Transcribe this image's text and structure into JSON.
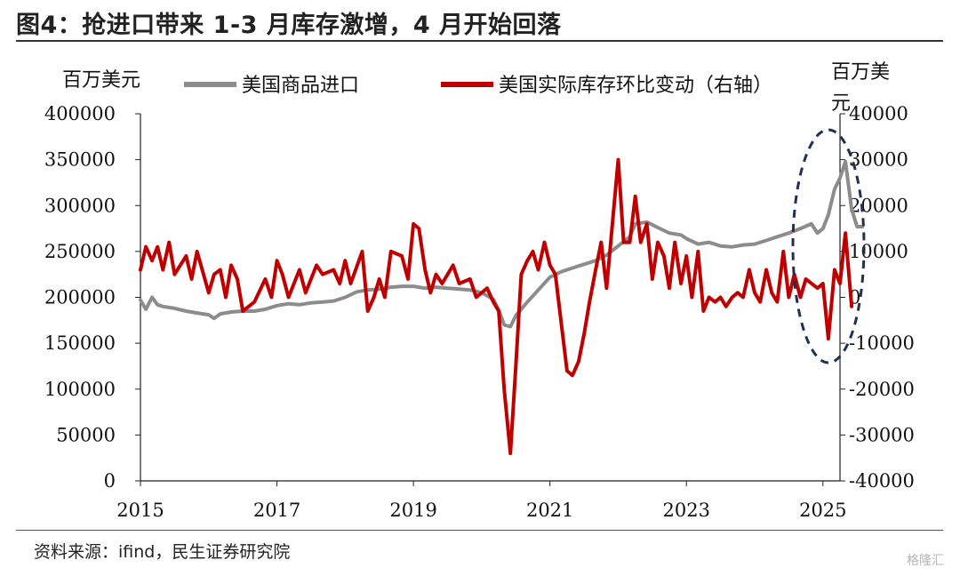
{
  "title": "图4：抢进口带来 1-3 月库存激增，4 月开始回落",
  "source": "资料来源：ifind，民生证券研究院",
  "watermark": "格隆汇",
  "chart_data": {
    "type": "line",
    "left_unit": "百万美元",
    "right_unit": "百万美元",
    "left_axis": {
      "min": 0,
      "max": 400000,
      "step": 50000,
      "ticks": [
        "0",
        "50000",
        "100000",
        "150000",
        "200000",
        "250000",
        "300000",
        "350000",
        "400000"
      ]
    },
    "right_axis": {
      "min": -40000,
      "max": 40000,
      "step": 10000,
      "ticks": [
        "-40000",
        "-30000",
        "-20000",
        "-10000",
        "0",
        "10000",
        "20000",
        "30000",
        "40000"
      ]
    },
    "x_axis": {
      "min": 2015.0,
      "max": 2025.25,
      "ticks": [
        "2015",
        "2017",
        "2019",
        "2021",
        "2023",
        "2025"
      ]
    },
    "series": [
      {
        "name": "美国商品进口",
        "axis": "left",
        "color": "#8c8c8c",
        "points": [
          [
            2015.0,
            197000
          ],
          [
            2015.08,
            187000
          ],
          [
            2015.17,
            200000
          ],
          [
            2015.25,
            192000
          ],
          [
            2015.33,
            190000
          ],
          [
            2015.5,
            188000
          ],
          [
            2015.67,
            185000
          ],
          [
            2015.83,
            183000
          ],
          [
            2016.0,
            181000
          ],
          [
            2016.08,
            177000
          ],
          [
            2016.17,
            182000
          ],
          [
            2016.33,
            184000
          ],
          [
            2016.5,
            185000
          ],
          [
            2016.67,
            185000
          ],
          [
            2016.83,
            187000
          ],
          [
            2017.0,
            191000
          ],
          [
            2017.17,
            193000
          ],
          [
            2017.33,
            192000
          ],
          [
            2017.5,
            194000
          ],
          [
            2017.67,
            195000
          ],
          [
            2017.83,
            196000
          ],
          [
            2018.0,
            200000
          ],
          [
            2018.17,
            206000
          ],
          [
            2018.33,
            208000
          ],
          [
            2018.5,
            209000
          ],
          [
            2018.67,
            211000
          ],
          [
            2018.83,
            212000
          ],
          [
            2019.0,
            212000
          ],
          [
            2019.17,
            210000
          ],
          [
            2019.33,
            211000
          ],
          [
            2019.5,
            210000
          ],
          [
            2019.67,
            209000
          ],
          [
            2019.83,
            208000
          ],
          [
            2020.0,
            205000
          ],
          [
            2020.17,
            198000
          ],
          [
            2020.25,
            186000
          ],
          [
            2020.33,
            170000
          ],
          [
            2020.42,
            168000
          ],
          [
            2020.5,
            180000
          ],
          [
            2020.67,
            195000
          ],
          [
            2020.83,
            208000
          ],
          [
            2021.0,
            222000
          ],
          [
            2021.17,
            228000
          ],
          [
            2021.33,
            232000
          ],
          [
            2021.5,
            236000
          ],
          [
            2021.67,
            240000
          ],
          [
            2021.83,
            246000
          ],
          [
            2022.0,
            256000
          ],
          [
            2022.17,
            266000
          ],
          [
            2022.25,
            280000
          ],
          [
            2022.42,
            282000
          ],
          [
            2022.58,
            276000
          ],
          [
            2022.75,
            270000
          ],
          [
            2022.92,
            268000
          ],
          [
            2023.0,
            264000
          ],
          [
            2023.17,
            258000
          ],
          [
            2023.33,
            260000
          ],
          [
            2023.5,
            256000
          ],
          [
            2023.67,
            255000
          ],
          [
            2023.83,
            257000
          ],
          [
            2024.0,
            258000
          ],
          [
            2024.17,
            262000
          ],
          [
            2024.33,
            266000
          ],
          [
            2024.5,
            270000
          ],
          [
            2024.67,
            275000
          ],
          [
            2024.83,
            280000
          ],
          [
            2024.92,
            270000
          ],
          [
            2025.0,
            275000
          ],
          [
            2025.08,
            290000
          ],
          [
            2025.17,
            318000
          ],
          [
            2025.25,
            330000
          ],
          [
            2025.33,
            348000
          ],
          [
            2025.42,
            296000
          ],
          [
            2025.5,
            277000
          ],
          [
            2025.58,
            277000
          ]
        ]
      },
      {
        "name": "美国实际库存环比变动（右轴）",
        "axis": "right",
        "color": "#c00000",
        "points": [
          [
            2015.0,
            6000
          ],
          [
            2015.08,
            11000
          ],
          [
            2015.17,
            8000
          ],
          [
            2015.25,
            11000
          ],
          [
            2015.33,
            6000
          ],
          [
            2015.42,
            12000
          ],
          [
            2015.5,
            5000
          ],
          [
            2015.67,
            9000
          ],
          [
            2015.75,
            4000
          ],
          [
            2015.83,
            10000
          ],
          [
            2016.0,
            1000
          ],
          [
            2016.08,
            5000
          ],
          [
            2016.17,
            6000
          ],
          [
            2016.25,
            0
          ],
          [
            2016.33,
            7000
          ],
          [
            2016.42,
            4000
          ],
          [
            2016.5,
            -3000
          ],
          [
            2016.67,
            -1000
          ],
          [
            2016.83,
            4000
          ],
          [
            2016.92,
            0
          ],
          [
            2017.0,
            8000
          ],
          [
            2017.08,
            5000
          ],
          [
            2017.17,
            0
          ],
          [
            2017.33,
            6000
          ],
          [
            2017.42,
            1000
          ],
          [
            2017.58,
            7000
          ],
          [
            2017.67,
            5000
          ],
          [
            2017.83,
            6000
          ],
          [
            2017.92,
            3000
          ],
          [
            2018.0,
            8000
          ],
          [
            2018.08,
            3000
          ],
          [
            2018.25,
            10000
          ],
          [
            2018.33,
            -3000
          ],
          [
            2018.42,
            0
          ],
          [
            2018.5,
            4000
          ],
          [
            2018.58,
            0
          ],
          [
            2018.67,
            10000
          ],
          [
            2018.83,
            9000
          ],
          [
            2018.92,
            4000
          ],
          [
            2019.0,
            16000
          ],
          [
            2019.08,
            15000
          ],
          [
            2019.17,
            6000
          ],
          [
            2019.25,
            1000
          ],
          [
            2019.33,
            5000
          ],
          [
            2019.42,
            3000
          ],
          [
            2019.58,
            7000
          ],
          [
            2019.67,
            3000
          ],
          [
            2019.83,
            4000
          ],
          [
            2019.92,
            0
          ],
          [
            2020.08,
            2000
          ],
          [
            2020.17,
            -1000
          ],
          [
            2020.25,
            -3000
          ],
          [
            2020.33,
            -20000
          ],
          [
            2020.42,
            -34000
          ],
          [
            2020.5,
            -15000
          ],
          [
            2020.58,
            5000
          ],
          [
            2020.67,
            8000
          ],
          [
            2020.75,
            10000
          ],
          [
            2020.83,
            6000
          ],
          [
            2020.92,
            12000
          ],
          [
            2021.0,
            7000
          ],
          [
            2021.08,
            5000
          ],
          [
            2021.25,
            -16000
          ],
          [
            2021.33,
            -17000
          ],
          [
            2021.42,
            -14000
          ],
          [
            2021.5,
            -8000
          ],
          [
            2021.58,
            -1000
          ],
          [
            2021.67,
            6000
          ],
          [
            2021.75,
            12000
          ],
          [
            2021.83,
            2000
          ],
          [
            2022.0,
            30000
          ],
          [
            2022.08,
            12000
          ],
          [
            2022.17,
            12000
          ],
          [
            2022.25,
            22000
          ],
          [
            2022.33,
            12000
          ],
          [
            2022.42,
            16000
          ],
          [
            2022.5,
            4000
          ],
          [
            2022.58,
            12000
          ],
          [
            2022.67,
            9000
          ],
          [
            2022.75,
            2000
          ],
          [
            2022.83,
            12000
          ],
          [
            2022.92,
            3000
          ],
          [
            2023.0,
            9000
          ],
          [
            2023.08,
            0
          ],
          [
            2023.17,
            10000
          ],
          [
            2023.25,
            -3000
          ],
          [
            2023.33,
            0
          ],
          [
            2023.42,
            -1000
          ],
          [
            2023.5,
            0
          ],
          [
            2023.58,
            -2000
          ],
          [
            2023.67,
            0
          ],
          [
            2023.75,
            1000
          ],
          [
            2023.83,
            0
          ],
          [
            2023.92,
            6000
          ],
          [
            2024.0,
            1000
          ],
          [
            2024.08,
            -1000
          ],
          [
            2024.17,
            6000
          ],
          [
            2024.25,
            1000
          ],
          [
            2024.33,
            -1000
          ],
          [
            2024.42,
            10000
          ],
          [
            2024.5,
            0
          ],
          [
            2024.58,
            5000
          ],
          [
            2024.67,
            0
          ],
          [
            2024.75,
            4000
          ],
          [
            2024.92,
            2000
          ],
          [
            2025.0,
            3000
          ],
          [
            2025.08,
            -9000
          ],
          [
            2025.17,
            6000
          ],
          [
            2025.25,
            3000
          ],
          [
            2025.33,
            14000
          ],
          [
            2025.42,
            -2000
          ]
        ]
      }
    ]
  }
}
